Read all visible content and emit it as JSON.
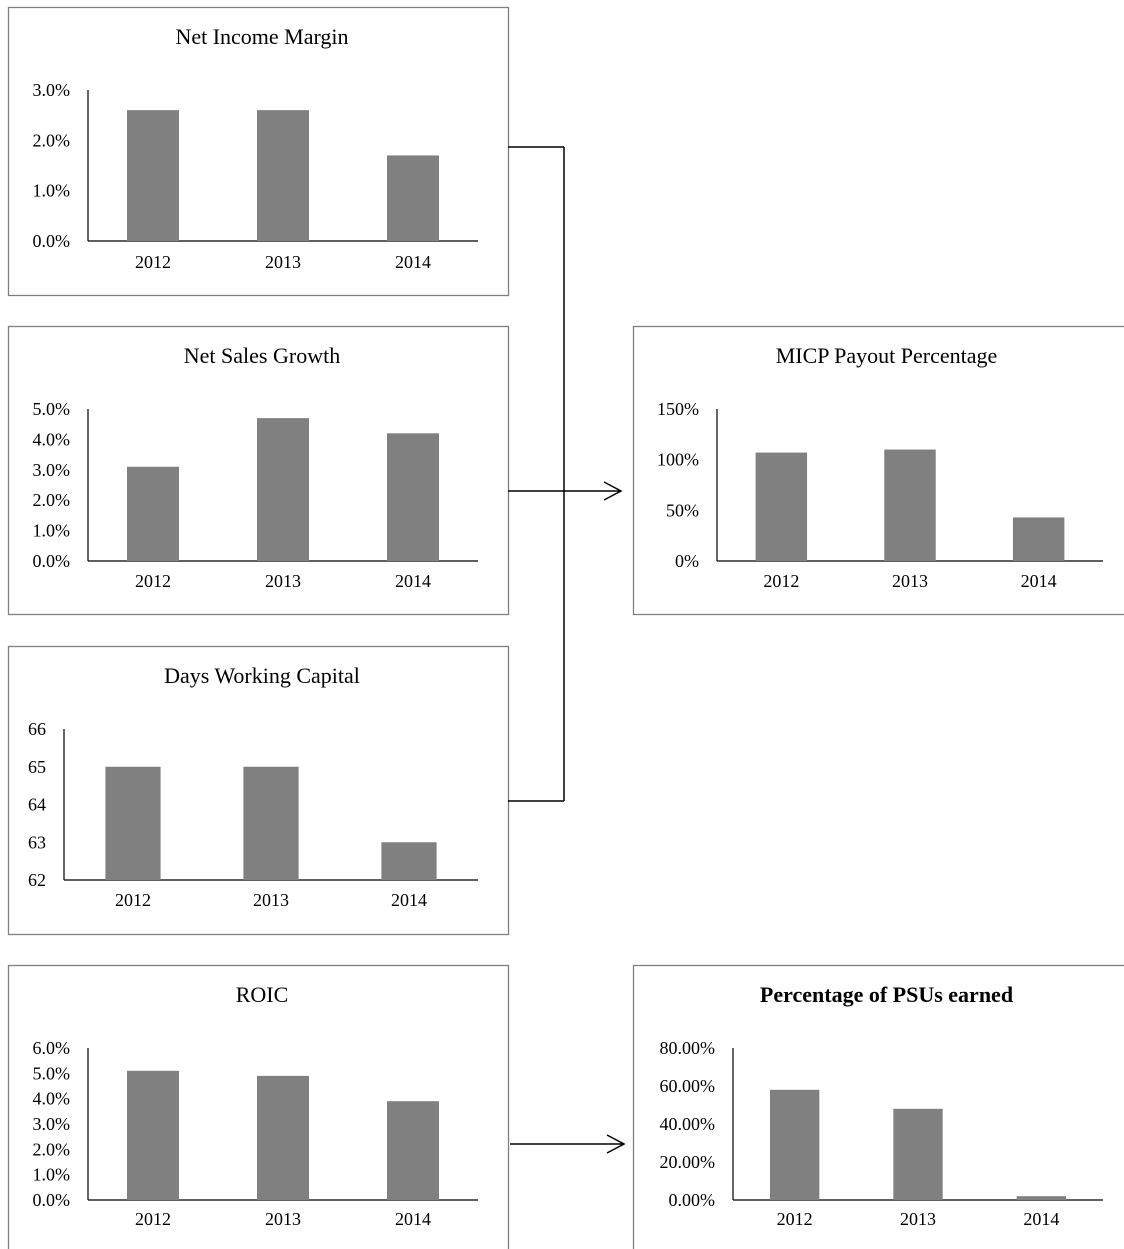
{
  "chart_data": [
    {
      "id": "net-income-margin",
      "type": "bar",
      "title": "Net Income Margin",
      "title_bold": false,
      "categories": [
        "2012",
        "2013",
        "2014"
      ],
      "values": [
        0.026,
        0.026,
        0.017
      ],
      "ylim": [
        0,
        0.03
      ],
      "yticks": [
        0,
        0.01,
        0.02,
        0.03
      ],
      "ytick_labels": [
        "0.0%",
        "1.0%",
        "2.0%",
        "3.0%"
      ],
      "xlabel": "",
      "ylabel": "",
      "grid": false,
      "legend": "none",
      "bar_color": "#808080"
    },
    {
      "id": "net-sales-growth",
      "type": "bar",
      "title": "Net Sales Growth",
      "title_bold": false,
      "categories": [
        "2012",
        "2013",
        "2014"
      ],
      "values": [
        0.031,
        0.047,
        0.042
      ],
      "ylim": [
        0,
        0.05
      ],
      "yticks": [
        0,
        0.01,
        0.02,
        0.03,
        0.04,
        0.05
      ],
      "ytick_labels": [
        "0.0%",
        "1.0%",
        "2.0%",
        "3.0%",
        "4.0%",
        "5.0%"
      ],
      "xlabel": "",
      "ylabel": "",
      "grid": false,
      "legend": "none",
      "bar_color": "#808080"
    },
    {
      "id": "days-working-capital",
      "type": "bar",
      "title": "Days Working Capital",
      "title_bold": false,
      "categories": [
        "2012",
        "2013",
        "2014"
      ],
      "values": [
        65,
        65,
        63
      ],
      "ylim": [
        62,
        66
      ],
      "yticks": [
        62,
        63,
        64,
        65,
        66
      ],
      "ytick_labels": [
        "62",
        "63",
        "64",
        "65",
        "66"
      ],
      "xlabel": "",
      "ylabel": "",
      "grid": false,
      "legend": "none",
      "bar_color": "#808080"
    },
    {
      "id": "roic",
      "type": "bar",
      "title": "ROIC",
      "title_bold": false,
      "categories": [
        "2012",
        "2013",
        "2014"
      ],
      "values": [
        0.051,
        0.049,
        0.039
      ],
      "ylim": [
        0,
        0.06
      ],
      "yticks": [
        0,
        0.01,
        0.02,
        0.03,
        0.04,
        0.05,
        0.06
      ],
      "ytick_labels": [
        "0.0%",
        "1.0%",
        "2.0%",
        "3.0%",
        "4.0%",
        "5.0%",
        "6.0%"
      ],
      "xlabel": "",
      "ylabel": "",
      "grid": false,
      "legend": "none",
      "bar_color": "#808080"
    },
    {
      "id": "micp-payout-percentage",
      "type": "bar",
      "title": "MICP Payout Percentage",
      "title_bold": false,
      "categories": [
        "2012",
        "2013",
        "2014"
      ],
      "values": [
        1.07,
        1.1,
        0.43
      ],
      "ylim": [
        0,
        1.5
      ],
      "yticks": [
        0,
        0.5,
        1.0,
        1.5
      ],
      "ytick_labels": [
        "0%",
        "50%",
        "100%",
        "150%"
      ],
      "xlabel": "",
      "ylabel": "",
      "grid": false,
      "legend": "none",
      "bar_color": "#808080"
    },
    {
      "id": "percentage-of-psus-earned",
      "type": "bar",
      "title": "Percentage of PSUs earned",
      "title_bold": true,
      "categories": [
        "2012",
        "2013",
        "2014"
      ],
      "values": [
        0.58,
        0.48,
        0.02
      ],
      "ylim": [
        0,
        0.8
      ],
      "yticks": [
        0,
        0.2,
        0.4,
        0.6,
        0.8
      ],
      "ytick_labels": [
        "0.00%",
        "20.00%",
        "40.00%",
        "60.00%",
        "80.00%"
      ],
      "xlabel": "",
      "ylabel": "",
      "grid": false,
      "legend": "none",
      "bar_color": "#808080"
    }
  ]
}
